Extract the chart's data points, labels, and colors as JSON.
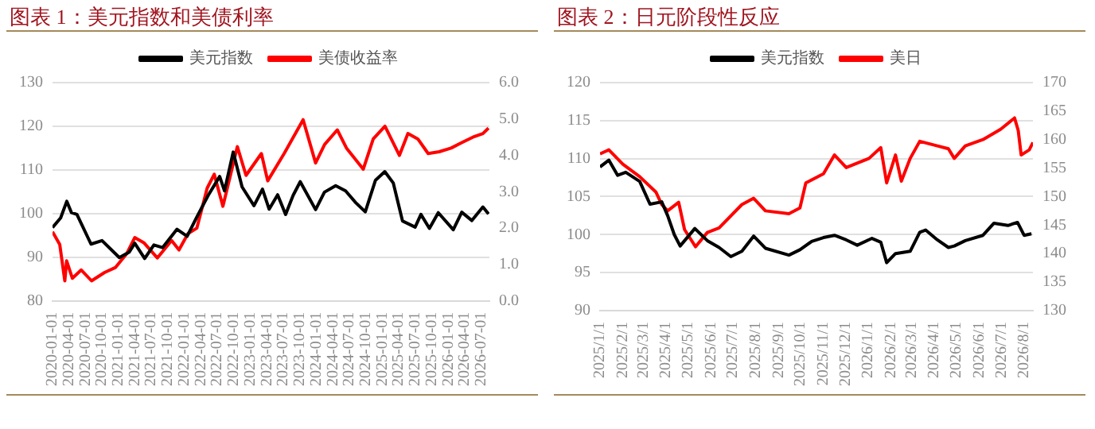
{
  "chart_data": [
    {
      "type": "line",
      "title": "图表 1：美元指数和美债利率",
      "legend": "top",
      "grid": "y",
      "marker": "none",
      "line_style": "solid",
      "xlim": [
        "2020-01-01",
        "2026-08-15"
      ],
      "xticks": [
        "2020-01-01",
        "2020-04-01",
        "2020-07-01",
        "2020-10-01",
        "2021-01-01",
        "2021-04-01",
        "2021-07-01",
        "2021-10-01",
        "2022-01-01",
        "2022-04-01",
        "2022-07-01",
        "2022-10-01",
        "2023-01-01",
        "2023-04-01",
        "2023-07-01",
        "2023-10-01",
        "2024-01-01",
        "2024-04-01",
        "2024-07-01",
        "2024-10-01",
        "2025-01-01",
        "2025-04-01",
        "2025-07-01",
        "2025-10-01",
        "2026-01-01",
        "2026-04-01",
        "2026-07-01"
      ],
      "ylim": [
        80,
        130
      ],
      "yticks": [
        80,
        90,
        100,
        110,
        120,
        130
      ],
      "y2lim": [
        0,
        6
      ],
      "y2ticks": [
        {
          "value": 0,
          "label": "0.0"
        },
        {
          "value": 1,
          "label": "1.0"
        },
        {
          "value": 2,
          "label": "2.0"
        },
        {
          "value": 3,
          "label": "3.0"
        },
        {
          "value": 4,
          "label": "4.0"
        },
        {
          "value": 5,
          "label": "5.0"
        },
        {
          "value": 6,
          "label": "6.0"
        }
      ],
      "series": [
        {
          "name": "美元指数",
          "color": "#000000",
          "x": [
            "2020-01-01",
            "2020-02-15",
            "2020-03-20",
            "2020-04-15",
            "2020-05-15",
            "2020-08-01",
            "2020-10-01",
            "2021-01-05",
            "2021-03-01",
            "2021-03-31",
            "2021-05-25",
            "2021-07-15",
            "2021-09-01",
            "2021-11-20",
            "2022-01-15",
            "2022-03-07",
            "2022-05-12",
            "2022-07-14",
            "2022-08-10",
            "2022-09-27",
            "2022-11-15",
            "2023-01-20",
            "2023-03-08",
            "2023-04-14",
            "2023-05-31",
            "2023-07-14",
            "2023-08-25",
            "2023-10-03",
            "2023-12-27",
            "2024-02-14",
            "2024-04-16",
            "2024-06-10",
            "2024-08-05",
            "2024-09-27",
            "2024-11-22",
            "2025-01-13",
            "2025-03-01",
            "2025-04-21",
            "2025-06-30",
            "2025-08-01",
            "2025-09-17",
            "2025-11-05",
            "2026-01-27",
            "2026-03-15",
            "2026-05-10",
            "2026-07-10",
            "2026-08-10"
          ],
          "values": [
            96.8,
            99.0,
            102.8,
            100.2,
            99.8,
            93.0,
            93.8,
            89.9,
            91.2,
            93.2,
            89.7,
            92.8,
            92.2,
            96.4,
            94.8,
            99.0,
            104.2,
            108.5,
            105.2,
            114.1,
            106.1,
            101.8,
            105.6,
            101.0,
            104.3,
            99.8,
            104.2,
            107.3,
            100.9,
            104.9,
            106.4,
            105.2,
            102.5,
            100.4,
            107.6,
            109.6,
            107.0,
            98.3,
            96.9,
            99.8,
            96.6,
            100.2,
            96.3,
            100.3,
            98.4,
            101.5,
            99.9
          ]
        },
        {
          "name": "美债收益率",
          "color": "#ff0000",
          "axis": "y2",
          "x": [
            "2020-01-01",
            "2020-02-10",
            "2020-03-09",
            "2020-03-19",
            "2020-04-20",
            "2020-06-08",
            "2020-08-04",
            "2020-10-15",
            "2020-12-15",
            "2021-02-15",
            "2021-03-31",
            "2021-05-20",
            "2021-08-03",
            "2021-10-21",
            "2021-12-01",
            "2022-01-20",
            "2022-03-10",
            "2022-05-06",
            "2022-06-14",
            "2022-08-01",
            "2022-10-20",
            "2022-12-07",
            "2023-03-02",
            "2023-04-06",
            "2023-07-06",
            "2023-10-19",
            "2023-12-27",
            "2024-02-15",
            "2024-04-25",
            "2024-06-15",
            "2024-09-16",
            "2024-11-10",
            "2025-01-14",
            "2025-04-04",
            "2025-05-21",
            "2025-07-15",
            "2025-09-10",
            "2025-11-10",
            "2026-01-15",
            "2026-03-15",
            "2026-05-15",
            "2026-07-10",
            "2026-08-10"
          ],
          "values": [
            1.9,
            1.55,
            0.55,
            1.1,
            0.62,
            0.85,
            0.55,
            0.78,
            0.92,
            1.3,
            1.74,
            1.6,
            1.18,
            1.66,
            1.4,
            1.85,
            2.0,
            3.1,
            3.48,
            2.6,
            4.24,
            3.45,
            4.05,
            3.3,
            4.05,
            4.98,
            3.79,
            4.3,
            4.7,
            4.2,
            3.62,
            4.45,
            4.8,
            4.0,
            4.6,
            4.45,
            4.05,
            4.1,
            4.2,
            4.35,
            4.5,
            4.6,
            4.75
          ]
        }
      ]
    },
    {
      "type": "line",
      "title": "图表 2：日元阶段性反应",
      "legend": "top",
      "grid": "y",
      "marker": "none",
      "line_style": "solid",
      "xlim": [
        "2025-01-01",
        "2026-08-13"
      ],
      "xticks": [
        {
          "value": "2025-01-01",
          "label": "2025/1/1"
        },
        {
          "value": "2025-02-01",
          "label": "2025/2/1"
        },
        {
          "value": "2025-03-01",
          "label": "2025/3/1"
        },
        {
          "value": "2025-04-01",
          "label": "2025/4/1"
        },
        {
          "value": "2025-05-01",
          "label": "2025/5/1"
        },
        {
          "value": "2025-06-01",
          "label": "2025/6/1"
        },
        {
          "value": "2025-07-01",
          "label": "2025/7/1"
        },
        {
          "value": "2025-08-01",
          "label": "2025/8/1"
        },
        {
          "value": "2025-09-01",
          "label": "2025/9/1"
        },
        {
          "value": "2025-10-01",
          "label": "2025/10/1"
        },
        {
          "value": "2025-11-01",
          "label": "2025/11/1"
        },
        {
          "value": "2025-12-01",
          "label": "2025/12/1"
        },
        {
          "value": "2026-01-01",
          "label": "2026/1/1"
        },
        {
          "value": "2026-02-01",
          "label": "2026/2/1"
        },
        {
          "value": "2026-03-01",
          "label": "2026/3/1"
        },
        {
          "value": "2026-04-01",
          "label": "2026/4/1"
        },
        {
          "value": "2026-05-01",
          "label": "2026/5/1"
        },
        {
          "value": "2026-06-01",
          "label": "2026/6/1"
        },
        {
          "value": "2026-07-01",
          "label": "2026/7/1"
        },
        {
          "value": "2026-08-01",
          "label": "2026/8/1"
        }
      ],
      "ylim": [
        90,
        120
      ],
      "yticks": [
        90,
        95,
        100,
        105,
        110,
        115,
        120
      ],
      "y2lim": [
        130,
        170
      ],
      "y2ticks": [
        130,
        135,
        140,
        145,
        150,
        155,
        160,
        165,
        170
      ],
      "series": [
        {
          "name": "美元指数",
          "color": "#000000",
          "x": [
            "2025-01-01",
            "2025-01-13",
            "2025-01-25",
            "2025-02-05",
            "2025-02-24",
            "2025-03-10",
            "2025-03-26",
            "2025-04-03",
            "2025-04-12",
            "2025-04-20",
            "2025-05-10",
            "2025-05-27",
            "2025-06-12",
            "2025-06-28",
            "2025-07-13",
            "2025-07-29",
            "2025-08-14",
            "2025-09-15",
            "2025-09-30",
            "2025-10-16",
            "2025-11-01",
            "2025-11-16",
            "2025-12-02",
            "2025-12-17",
            "2026-01-06",
            "2026-01-18",
            "2026-01-26",
            "2026-02-07",
            "2026-02-27",
            "2026-03-12",
            "2026-03-20",
            "2026-04-05",
            "2026-04-20",
            "2026-04-28",
            "2026-05-13",
            "2026-06-06",
            "2026-06-21",
            "2026-07-10",
            "2026-07-23",
            "2026-08-01",
            "2026-08-11"
          ],
          "values": [
            108.9,
            109.8,
            107.8,
            108.2,
            107.0,
            104.0,
            104.3,
            102.5,
            100.0,
            98.5,
            100.8,
            99.2,
            98.3,
            97.1,
            97.8,
            99.8,
            98.2,
            97.3,
            98.0,
            99.1,
            99.6,
            99.9,
            99.3,
            98.6,
            99.5,
            99.0,
            96.3,
            97.5,
            97.8,
            100.3,
            100.6,
            99.3,
            98.3,
            98.5,
            99.2,
            99.9,
            101.5,
            101.2,
            101.6,
            99.9,
            100.1
          ]
        },
        {
          "name": "美日",
          "color": "#ff0000",
          "axis": "y2",
          "x": [
            "2025-01-01",
            "2025-01-13",
            "2025-02-01",
            "2025-02-24",
            "2025-03-18",
            "2025-03-26",
            "2025-04-03",
            "2025-04-18",
            "2025-04-26",
            "2025-05-11",
            "2025-05-27",
            "2025-06-12",
            "2025-07-13",
            "2025-07-29",
            "2025-08-14",
            "2025-09-15",
            "2025-09-30",
            "2025-10-08",
            "2025-11-01",
            "2025-11-16",
            "2025-12-02",
            "2026-01-02",
            "2026-01-18",
            "2026-01-26",
            "2026-02-07",
            "2026-02-15",
            "2026-02-27",
            "2026-03-12",
            "2026-04-05",
            "2026-04-20",
            "2026-04-28",
            "2026-05-13",
            "2026-06-06",
            "2026-06-30",
            "2026-07-19",
            "2026-07-24",
            "2026-07-28",
            "2026-08-08",
            "2026-08-13"
          ],
          "values": [
            157.5,
            158.2,
            155.7,
            153.5,
            150.8,
            148.6,
            147.5,
            149.0,
            144.2,
            141.2,
            143.7,
            144.5,
            148.6,
            149.7,
            147.5,
            147.0,
            148.0,
            152.4,
            154.0,
            157.3,
            155.1,
            156.7,
            158.6,
            152.4,
            157.3,
            152.7,
            156.7,
            159.7,
            158.9,
            158.4,
            156.7,
            158.9,
            160.0,
            161.8,
            163.8,
            161.6,
            157.3,
            158.2,
            159.5
          ]
        }
      ]
    }
  ]
}
